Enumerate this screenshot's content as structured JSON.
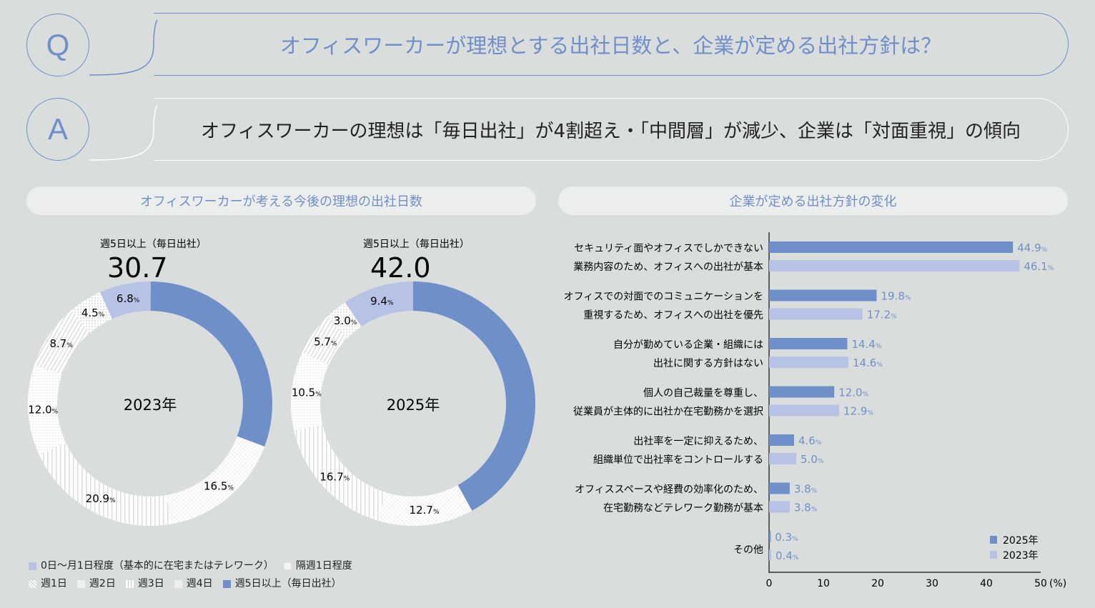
{
  "question": {
    "badge": "Q",
    "text": "オフィスワーカーが理想とする出社日数と、企業が定める出社方針は？"
  },
  "answer": {
    "badge": "A",
    "text": "オフィスワーカーの理想は「毎日出社」が4割超え・「中間層」が減少、企業は「対面重視」の傾向"
  },
  "colors": {
    "accent": "#6f8fc9",
    "light": "#b7c3e4",
    "background": "#d9dedc"
  },
  "chart_data": [
    {
      "type": "pie",
      "variant": "donut",
      "title": "オフィスワーカーが考える今後の理想の出社日数",
      "legend": [
        "0日〜月1日程度（基本的に在宅またはテレワーク）",
        "隔週1日程度",
        "週1日",
        "週2日",
        "週3日",
        "週4日",
        "週5日以上（毎日出社）"
      ],
      "legend_placement": "bottom",
      "charts": [
        {
          "center_label": "2023年",
          "headline_label": "週5日以上（毎日出社）",
          "headline_value": "30.7",
          "unit": "%",
          "slices": [
            {
              "category": "週5日以上（毎日出社）",
              "value": 30.7
            },
            {
              "category": "週4日",
              "value": 16.5
            },
            {
              "category": "週3日",
              "value": 20.9
            },
            {
              "category": "週2日",
              "value": 12.0
            },
            {
              "category": "週1日",
              "value": 8.7
            },
            {
              "category": "隔週1日程度",
              "value": 4.5
            },
            {
              "category": "0日〜月1日程度（基本的に在宅またはテレワーク）",
              "value": 6.8
            }
          ]
        },
        {
          "center_label": "2025年",
          "headline_label": "週5日以上（毎日出社）",
          "headline_value": "42.0",
          "unit": "%",
          "slices": [
            {
              "category": "週5日以上（毎日出社）",
              "value": 42.0
            },
            {
              "category": "週4日",
              "value": 12.7
            },
            {
              "category": "週3日",
              "value": 16.7
            },
            {
              "category": "週2日",
              "value": 10.5
            },
            {
              "category": "週1日",
              "value": 5.7
            },
            {
              "category": "隔週1日程度",
              "value": 3.0
            },
            {
              "category": "0日〜月1日程度（基本的に在宅またはテレワーク）",
              "value": 9.4
            }
          ]
        }
      ]
    },
    {
      "type": "bar",
      "orientation": "horizontal",
      "title": "企業が定める出社方針の変化",
      "categories": [
        [
          "セキュリティ面やオフィスでしかできない",
          "業務内容のため、オフィスへの出社が基本"
        ],
        [
          "オフィスでの対面でのコミュニケーションを",
          "重視するため、オフィスへの出社を優先"
        ],
        [
          "自分が勤めている企業・組織には",
          "出社に関する方針はない"
        ],
        [
          "個人の自己裁量を尊重し、",
          "従業員が主体的に出社か在宅勤務かを選択"
        ],
        [
          "出社率を一定に抑えるため、",
          "組織単位で出社率をコントロールする"
        ],
        [
          "オフィススペースや経費の効率化のため、",
          "在宅勤務などテレワーク勤務が基本"
        ],
        [
          "その他"
        ]
      ],
      "series": [
        {
          "name": "2025年",
          "values": [
            44.9,
            19.8,
            14.4,
            12.0,
            4.6,
            3.8,
            0.3
          ]
        },
        {
          "name": "2023年",
          "values": [
            46.1,
            17.2,
            14.6,
            12.9,
            5.0,
            3.8,
            0.4
          ]
        }
      ],
      "xlim": [
        0,
        50
      ],
      "xticks": [
        "0",
        "10",
        "20",
        "30",
        "40",
        "50"
      ],
      "xunit": "(%)",
      "legend_placement": "bottom-right",
      "grid": false
    }
  ]
}
